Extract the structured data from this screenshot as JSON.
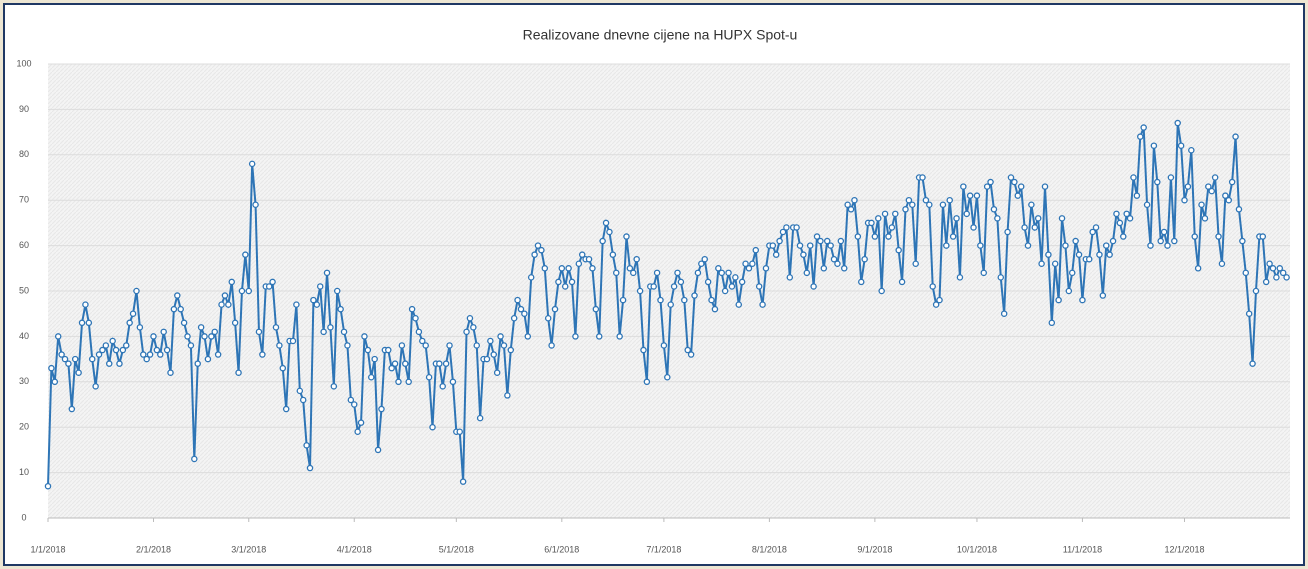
{
  "chart_data": {
    "type": "line",
    "title": "Realizovane dnevne cijene na HUPX Spot-u",
    "x": [
      0,
      1,
      2,
      3,
      4,
      5,
      6,
      7,
      8,
      9,
      10,
      11,
      12,
      13,
      14,
      15,
      16,
      17,
      18,
      19,
      20,
      21,
      22,
      23,
      24,
      25,
      26,
      27,
      28,
      29,
      30,
      31,
      32,
      33,
      34,
      35,
      36,
      37,
      38,
      39,
      40,
      41,
      42,
      43,
      44,
      45,
      46,
      47,
      48,
      49,
      50,
      51,
      52,
      53,
      54,
      55,
      56,
      57,
      58,
      59,
      60,
      61,
      62,
      63,
      64,
      65,
      66,
      67,
      68,
      69,
      70,
      71,
      72,
      73,
      74,
      75,
      76,
      77,
      78,
      79,
      80,
      81,
      82,
      83,
      84,
      85,
      86,
      87,
      88,
      89,
      90,
      91,
      92,
      93,
      94,
      95,
      96,
      97,
      98,
      99,
      100,
      101,
      102,
      103,
      104,
      105,
      106,
      107,
      108,
      109,
      110,
      111,
      112,
      113,
      114,
      115,
      116,
      117,
      118,
      119,
      120,
      121,
      122,
      123,
      124,
      125,
      126,
      127,
      128,
      129,
      130,
      131,
      132,
      133,
      134,
      135,
      136,
      137,
      138,
      139,
      140,
      141,
      142,
      143,
      144,
      145,
      146,
      147,
      148,
      149,
      150,
      151,
      152,
      153,
      154,
      155,
      156,
      157,
      158,
      159,
      160,
      161,
      162,
      163,
      164,
      165,
      166,
      167,
      168,
      169,
      170,
      171,
      172,
      173,
      174,
      175,
      176,
      177,
      178,
      179,
      180,
      181,
      182,
      183,
      184,
      185,
      186,
      187,
      188,
      189,
      190,
      191,
      192,
      193,
      194,
      195,
      196,
      197,
      198,
      199,
      200,
      201,
      202,
      203,
      204,
      205,
      206,
      207,
      208,
      209,
      210,
      211,
      212,
      213,
      214,
      215,
      216,
      217,
      218,
      219,
      220,
      221,
      222,
      223,
      224,
      225,
      226,
      227,
      228,
      229,
      230,
      231,
      232,
      233,
      234,
      235,
      236,
      237,
      238,
      239,
      240,
      241,
      242,
      243,
      244,
      245,
      246,
      247,
      248,
      249,
      250,
      251,
      252,
      253,
      254,
      255,
      256,
      257,
      258,
      259,
      260,
      261,
      262,
      263,
      264,
      265,
      266,
      267,
      268,
      269,
      270,
      271,
      272,
      273,
      274,
      275,
      276,
      277,
      278,
      279,
      280,
      281,
      282,
      283,
      284,
      285,
      286,
      287,
      288,
      289,
      290,
      291,
      292,
      293,
      294,
      295,
      296,
      297,
      298,
      299,
      300,
      301,
      302,
      303,
      304,
      305,
      306,
      307,
      308,
      309,
      310,
      311,
      312,
      313,
      314,
      315,
      316,
      317,
      318,
      319,
      320,
      321,
      322,
      323,
      324,
      325,
      326,
      327,
      328,
      329,
      330,
      331,
      332,
      333,
      334,
      335,
      336,
      337,
      338,
      339,
      340,
      341,
      342,
      343,
      344,
      345,
      346,
      347,
      348,
      349,
      350,
      351,
      352,
      353,
      354,
      355,
      356,
      357,
      358,
      359,
      360,
      361,
      362,
      363,
      364
    ],
    "series": [
      {
        "name": "HUPX",
        "color": "#2e75b6",
        "values": [
          7,
          33,
          30,
          40,
          36,
          35,
          34,
          24,
          35,
          32,
          43,
          47,
          43,
          35,
          29,
          36,
          37,
          38,
          34,
          39,
          37,
          34,
          37,
          38,
          43,
          45,
          50,
          42,
          36,
          35,
          36,
          40,
          37,
          36,
          41,
          37,
          32,
          46,
          49,
          46,
          43,
          40,
          38,
          13,
          34,
          42,
          40,
          35,
          40,
          41,
          36,
          47,
          49,
          47,
          52,
          43,
          32,
          50,
          58,
          50,
          78,
          69,
          41,
          36,
          51,
          51,
          52,
          42,
          38,
          33,
          24,
          39,
          39,
          47,
          28,
          26,
          16,
          11,
          48,
          47,
          51,
          41,
          54,
          42,
          29,
          50,
          46,
          41,
          38,
          26,
          25,
          19,
          21,
          40,
          37,
          31,
          35,
          15,
          24,
          37,
          37,
          33,
          34,
          30,
          38,
          34,
          30,
          46,
          44,
          41,
          39,
          38,
          31,
          20,
          34,
          34,
          29,
          34,
          38,
          30,
          19,
          19,
          8,
          41,
          44,
          42,
          38,
          22,
          35,
          35,
          39,
          36,
          32,
          40,
          38,
          27,
          37,
          44,
          48,
          46,
          45,
          40,
          53,
          58,
          60,
          59,
          55,
          44,
          38,
          46,
          52,
          55,
          51,
          55,
          52,
          40,
          56,
          58,
          57,
          57,
          55,
          46,
          40,
          61,
          65,
          63,
          58,
          54,
          40,
          48,
          62,
          55,
          54,
          57,
          50,
          37,
          30,
          51,
          51,
          54,
          48,
          38,
          31,
          47,
          51,
          54,
          52,
          48,
          37,
          36,
          49,
          54,
          56,
          57,
          52,
          48,
          46,
          55,
          54,
          50,
          54,
          51,
          53,
          47,
          52,
          56,
          55,
          56,
          59,
          51,
          47,
          55,
          60,
          60,
          58,
          61,
          63,
          64,
          53,
          64,
          64,
          60,
          58,
          54,
          60,
          51,
          62,
          61,
          55,
          61,
          60,
          57,
          56,
          61,
          55,
          69,
          68,
          70,
          62,
          52,
          57,
          65,
          65,
          62,
          66,
          50,
          67,
          62,
          64,
          67,
          59,
          52,
          68,
          70,
          69,
          56,
          75,
          75,
          70,
          69,
          51,
          47,
          48,
          69,
          60,
          70,
          62,
          66,
          53,
          73,
          67,
          71,
          64,
          71,
          60,
          54,
          73,
          74,
          68,
          66,
          53,
          45,
          63,
          75,
          74,
          71,
          73,
          64,
          60,
          69,
          64,
          66,
          56,
          73,
          58,
          43,
          56,
          48,
          66,
          60,
          50,
          54,
          61,
          58,
          48,
          57,
          57,
          63,
          64,
          58,
          49,
          60,
          58,
          61,
          67,
          65,
          62,
          67,
          66,
          75,
          71,
          84,
          86,
          69,
          60,
          82,
          74,
          61,
          63,
          60,
          75,
          61,
          87,
          82,
          70,
          73,
          81,
          62,
          55,
          69,
          66,
          73,
          72,
          75,
          62,
          56,
          71,
          70,
          74,
          84,
          68,
          61,
          54,
          45,
          34,
          50,
          62,
          62,
          52,
          56,
          55,
          53,
          55,
          54,
          53
        ]
      }
    ],
    "xlim": [
      0,
      365
    ],
    "xticks": [
      {
        "value": 0,
        "label": "1/1/2018"
      },
      {
        "value": 31,
        "label": "2/1/2018"
      },
      {
        "value": 59,
        "label": "3/1/2018"
      },
      {
        "value": 90,
        "label": "4/1/2018"
      },
      {
        "value": 120,
        "label": "5/1/2018"
      },
      {
        "value": 151,
        "label": "6/1/2018"
      },
      {
        "value": 181,
        "label": "7/1/2018"
      },
      {
        "value": 212,
        "label": "8/1/2018"
      },
      {
        "value": 243,
        "label": "9/1/2018"
      },
      {
        "value": 273,
        "label": "10/1/2018"
      },
      {
        "value": 304,
        "label": "11/1/2018"
      },
      {
        "value": 334,
        "label": "12/1/2018"
      }
    ],
    "ylim": [
      0,
      100
    ],
    "yticks": [
      0,
      10,
      20,
      30,
      40,
      50,
      60,
      70,
      80,
      90,
      100
    ],
    "grid": true
  }
}
